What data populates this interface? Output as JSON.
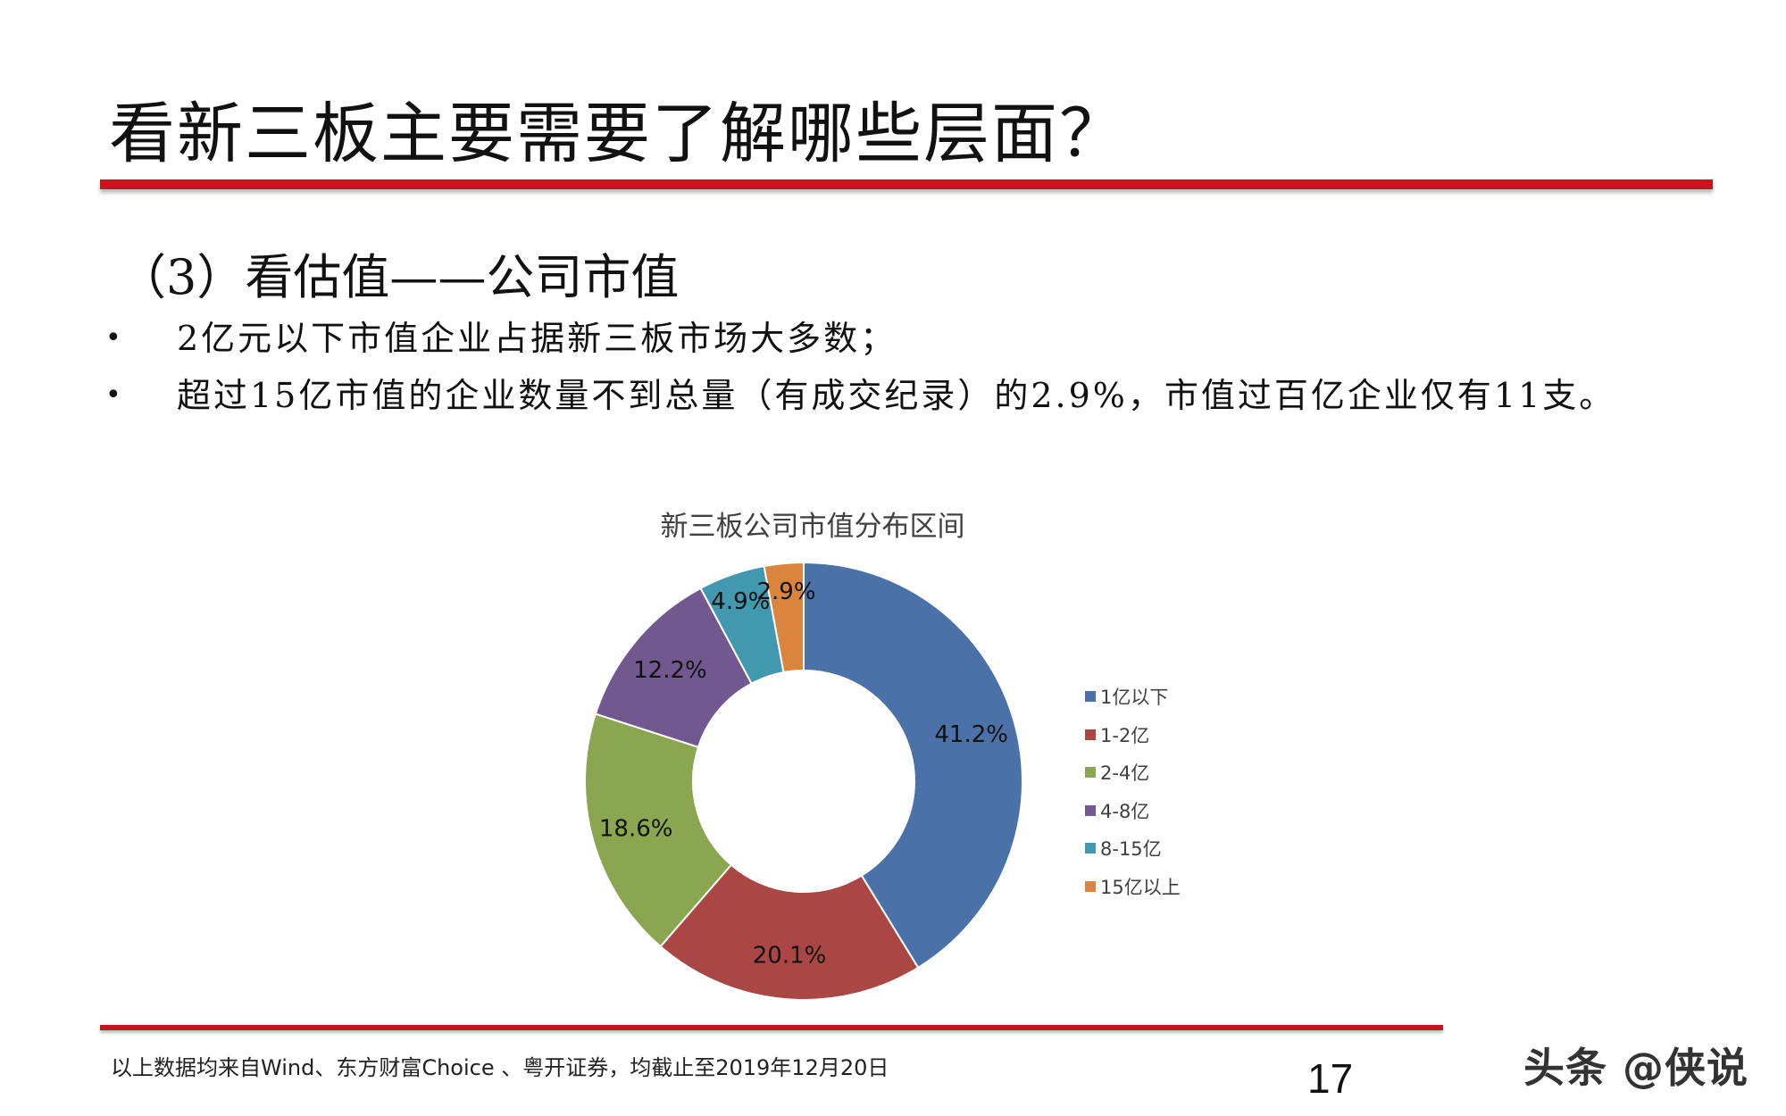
{
  "slide": {
    "title": "看新三板主要需要了解哪些层面？",
    "section_heading": "（3）看估值——公司市值",
    "bullets": [
      "2亿元以下市值企业占据新三板市场大多数；",
      "超过15亿市值的企业数量不到总量（有成交纪录）的2.9%，市值过百亿企业仅有11支。"
    ],
    "bullet_glyph": "•",
    "footnote": "以上数据均来自Wind、东方财富Choice 、粤开证券，均截止至2019年12月20日",
    "page_number": "17",
    "watermark": "头条 @侠说"
  },
  "colors": {
    "accent_red": "#c8151d"
  },
  "chart_data": {
    "type": "pie",
    "subtype": "donut",
    "title": "新三板公司市值分布区间",
    "categories": [
      "1亿以下",
      "1-2亿",
      "2-4亿",
      "4-8亿",
      "8-15亿",
      "15亿以上"
    ],
    "values": [
      41.2,
      20.1,
      18.6,
      12.2,
      4.9,
      2.9
    ],
    "labels": [
      "41.2%",
      "20.1%",
      "18.6%",
      "12.2%",
      "4.9%",
      "2.9%"
    ],
    "colors": [
      "#4a72a8",
      "#aa4643",
      "#8aa650",
      "#71588f",
      "#4298af",
      "#db843d"
    ],
    "legend_position": "right"
  }
}
